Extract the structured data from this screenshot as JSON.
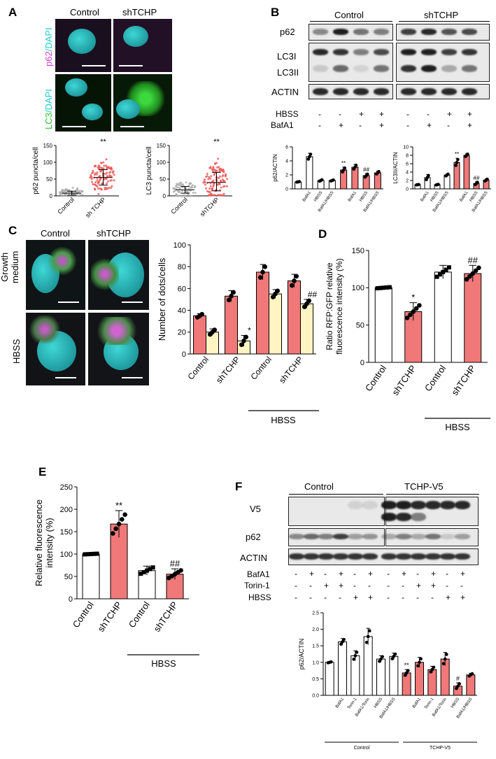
{
  "panels": {
    "A": "A",
    "B": "B",
    "C": "C",
    "D": "D",
    "E": "E",
    "F": "F"
  },
  "panelA": {
    "col_labels": [
      "Control",
      "shTCHP"
    ],
    "row_labels": [
      {
        "first": "p62",
        "second": "/DAPI"
      },
      {
        "first": "LC3",
        "second": "/DAPI"
      }
    ],
    "colors": {
      "p62": "#d63ad6",
      "lc3": "#2bbf2b",
      "dapi": "#22c8c8"
    }
  },
  "panelB": {
    "group_labels": [
      "Control",
      "shTCHP"
    ],
    "blot_rows": [
      "p62",
      "LC3I",
      "LC3II",
      "ACTIN"
    ],
    "treatments": [
      {
        "name": "HBSS",
        "signs": [
          "-",
          "-",
          "+",
          "+",
          "-",
          "-",
          "+",
          "+"
        ]
      },
      {
        "name": "BafA1",
        "signs": [
          "-",
          "+",
          "-",
          "+",
          "-",
          "+",
          "-",
          "+"
        ]
      }
    ]
  },
  "panelC": {
    "col_labels": [
      "Control",
      "shTCHP"
    ],
    "row_labels": [
      "Growth\nmedium",
      "HBSS"
    ],
    "bracket_label": "HBSS"
  },
  "panelF": {
    "group_labels": [
      "Control",
      "TCHP-V5"
    ],
    "blot_rows": [
      "V5",
      "p62",
      "ACTIN"
    ],
    "treatments": [
      {
        "name": "BafA1",
        "signs": [
          "-",
          "+",
          "-",
          "+",
          "-",
          "+",
          "-",
          "+",
          "-",
          "+",
          "-",
          "+"
        ]
      },
      {
        "name": "Torin-1",
        "signs": [
          "-",
          "-",
          "+",
          "+",
          "-",
          "-",
          "-",
          "-",
          "+",
          "+",
          "-",
          "-"
        ]
      },
      {
        "name": "HBSS",
        "signs": [
          "-",
          "-",
          "-",
          "-",
          "+",
          "+",
          "-",
          "-",
          "-",
          "-",
          "+",
          "+"
        ]
      }
    ]
  },
  "colors": {
    "red": "#f07878",
    "yellow": "#fff4c2",
    "white": "#ffffff"
  },
  "chart_data": [
    {
      "id": "A-p62",
      "type": "scatter",
      "ylabel": "p62 puncta/cell",
      "categories": [
        "Control",
        "sh TCHP"
      ],
      "ylim": [
        0,
        150
      ],
      "yticks": [
        0,
        50,
        100,
        150
      ],
      "means": [
        8,
        55
      ],
      "sd": [
        [
          2,
          14
        ],
        [
          32,
          78
        ]
      ],
      "annotations": [
        "",
        "**"
      ],
      "point_colors": [
        "#aaaaaa",
        "#ee5555"
      ]
    },
    {
      "id": "A-lc3",
      "type": "scatter",
      "ylabel": "LC3 puncta/cell",
      "categories": [
        "Control",
        "shTCHP"
      ],
      "ylim": [
        0,
        150
      ],
      "yticks": [
        0,
        50,
        100,
        150
      ],
      "means": [
        18,
        40
      ],
      "sd": [
        [
          8,
          28
        ],
        [
          15,
          70
        ]
      ],
      "annotations": [
        "",
        "**"
      ],
      "point_colors": [
        "#aaaaaa",
        "#ee5555"
      ]
    },
    {
      "id": "B-p62",
      "type": "bar",
      "ylabel": "p62/ACTIN",
      "ylim": [
        0,
        6
      ],
      "yticks": [
        0,
        2,
        4,
        6
      ],
      "categories": [
        "",
        "BafA1",
        "HBSS",
        "BafA1/HBSS",
        "",
        "BafA1",
        "HBSS",
        "BafA1/HBSS"
      ],
      "values": [
        1.0,
        4.6,
        1.2,
        1.2,
        2.7,
        3.1,
        1.9,
        2.3
      ],
      "sd": [
        0.05,
        0.5,
        0.15,
        0.1,
        0.4,
        0.4,
        0.3,
        0.25
      ],
      "colors": [
        "w",
        "w",
        "w",
        "w",
        "r",
        "r",
        "r",
        "r"
      ],
      "annotations": [
        "",
        "",
        "",
        "",
        "**",
        "",
        "##",
        ""
      ]
    },
    {
      "id": "B-lc3",
      "type": "bar",
      "ylabel": "LC3II/ACTIN",
      "ylim": [
        0,
        10
      ],
      "yticks": [
        0,
        2,
        4,
        6,
        8,
        10
      ],
      "categories": [
        "",
        "BafA1",
        "HBSS",
        "BafA1/HBSS",
        "",
        "BafA1",
        "HBSS",
        "BafA1/HBSS"
      ],
      "values": [
        1.0,
        2.7,
        1.0,
        3.3,
        6.3,
        8.0,
        1.3,
        2.1
      ],
      "sd": [
        0.05,
        0.7,
        0.1,
        0.3,
        1.0,
        0.4,
        0.4,
        0.3
      ],
      "colors": [
        "w",
        "w",
        "w",
        "w",
        "r",
        "r",
        "r",
        "r"
      ],
      "annotations": [
        "",
        "",
        "",
        "",
        "**",
        "",
        "##",
        ""
      ]
    },
    {
      "id": "C",
      "type": "bar",
      "ylabel": "Number of dots/cells",
      "ylim": [
        0,
        100
      ],
      "yticks": [
        0,
        20,
        40,
        60,
        80,
        100
      ],
      "categories": [
        "Control",
        "shTCHP",
        "Control",
        "shTCHP"
      ],
      "series": [
        {
          "values": [
            35,
            53,
            75,
            67
          ],
          "sd": [
            2,
            5,
            7,
            6
          ],
          "color": "r"
        },
        {
          "values": [
            20,
            12,
            55,
            46
          ],
          "sd": [
            3,
            5,
            4,
            4
          ],
          "color": "y"
        }
      ],
      "annotations": [
        [
          "",
          "",
          "",
          ""
        ],
        [
          "",
          "*",
          "",
          "##"
        ]
      ]
    },
    {
      "id": "D",
      "type": "bar",
      "ylabel": "Ratio RFP:GFP relative\nfluorescence intensity (%)",
      "ylim": [
        0,
        150
      ],
      "yticks": [
        0,
        50,
        100,
        150
      ],
      "categories": [
        "Control",
        "shTCHP",
        "Control",
        "shTCHP"
      ],
      "values": [
        100,
        68,
        121,
        119
      ],
      "sd": [
        1,
        12,
        9,
        11
      ],
      "colors": [
        "w",
        "r",
        "w",
        "r"
      ],
      "annotations": [
        "",
        "*",
        "",
        "##"
      ]
    },
    {
      "id": "E",
      "type": "bar",
      "ylabel": "Relative fluorescence\nintensity (%)",
      "ylim": [
        0,
        250
      ],
      "yticks": [
        0,
        50,
        100,
        150,
        200,
        250
      ],
      "categories": [
        "Control",
        "shTCHP",
        "Control",
        "shTCHP"
      ],
      "values": [
        100,
        167,
        63,
        55
      ],
      "sd": [
        1,
        30,
        10,
        12
      ],
      "colors": [
        "w",
        "r",
        "w",
        "r"
      ],
      "annotations": [
        "",
        "**",
        "",
        "##"
      ]
    },
    {
      "id": "F-p62",
      "type": "bar",
      "ylabel": "p62/ACTIN",
      "ylim": [
        0,
        2.5
      ],
      "yticks": [
        0.0,
        0.5,
        1.0,
        1.5,
        2.0,
        2.5
      ],
      "categories": [
        "",
        "BafA1",
        "Torin-1",
        "BafA1/Torin",
        "HBSS",
        "BafA1/HBSS",
        "",
        "BafA1",
        "Torin-1",
        "BafA1/Torin",
        "HBSS",
        "BafA1/HBSS"
      ],
      "values": [
        1.0,
        1.62,
        1.2,
        1.78,
        1.1,
        1.18,
        0.68,
        1.0,
        0.78,
        1.1,
        0.28,
        0.62
      ],
      "sd": [
        0.02,
        0.1,
        0.15,
        0.25,
        0.1,
        0.1,
        0.1,
        0.15,
        0.1,
        0.2,
        0.1,
        0.05
      ],
      "colors": [
        "w",
        "w",
        "w",
        "w",
        "w",
        "w",
        "r",
        "r",
        "r",
        "r",
        "r",
        "r"
      ],
      "annotations": [
        "",
        "",
        "",
        "",
        "",
        "",
        "**",
        "",
        "",
        "",
        "#",
        ""
      ],
      "groups": [
        "Control",
        "TCHP-V5"
      ]
    }
  ]
}
